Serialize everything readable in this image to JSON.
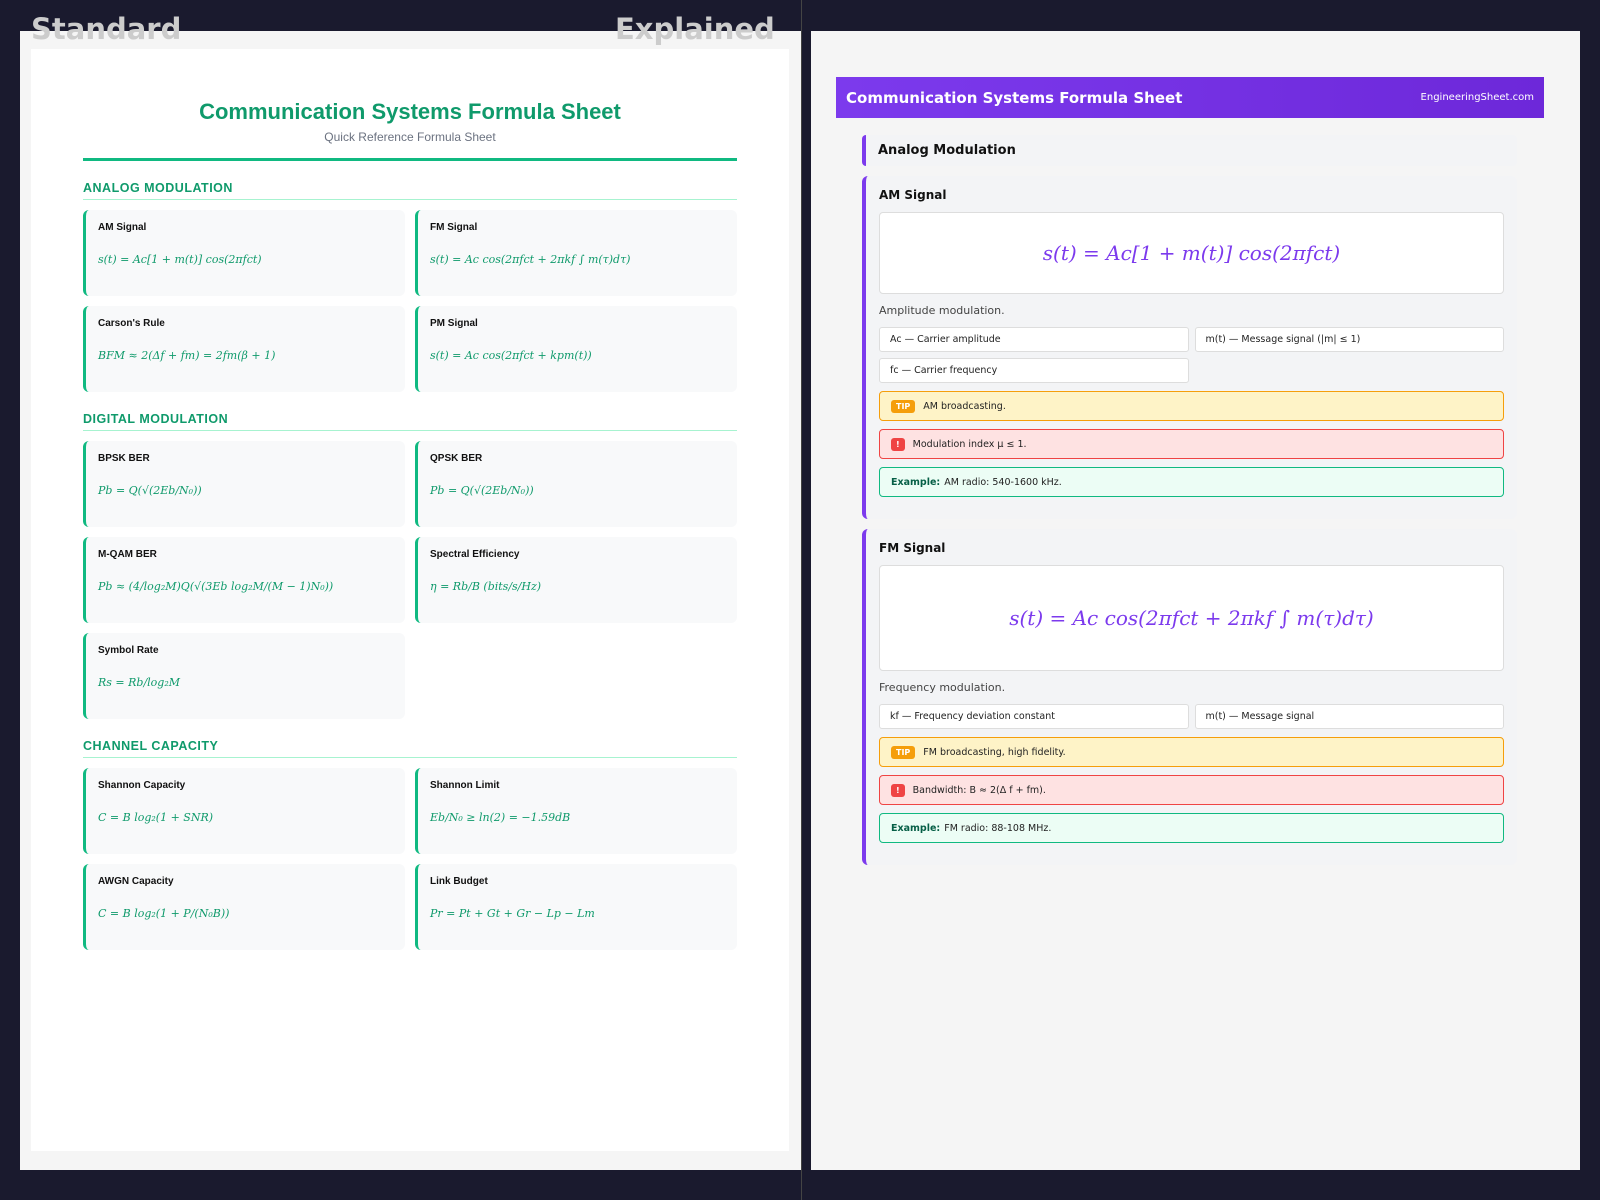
{
  "labels": {
    "standard": "Standard",
    "explained": "Explained"
  },
  "standard": {
    "title": "Communication Systems Formula Sheet",
    "subtitle": "Quick Reference Formula Sheet",
    "sections": [
      {
        "heading": "ANALOG MODULATION",
        "cards": [
          {
            "name": "AM Signal",
            "formula": "s(t) = Ac[1 + m(t)] cos(2πfct)"
          },
          {
            "name": "FM Signal",
            "formula": "s(t) = Ac cos(2πfct + 2πkf ∫ m(τ)dτ)"
          },
          {
            "name": "Carson's Rule",
            "formula": "BFM ≈ 2(Δf + fm) = 2fm(β + 1)"
          },
          {
            "name": "PM Signal",
            "formula": "s(t) = Ac cos(2πfct + kpm(t))"
          }
        ]
      },
      {
        "heading": "DIGITAL MODULATION",
        "cards": [
          {
            "name": "BPSK BER",
            "formula": "Pb = Q(√(2Eb/N₀))"
          },
          {
            "name": "QPSK BER",
            "formula": "Pb = Q(√(2Eb/N₀))"
          },
          {
            "name": "M-QAM BER",
            "formula": "Pb ≈ (4/log₂M)Q(√(3Eb log₂M/(M − 1)N₀))"
          },
          {
            "name": "Spectral Efficiency",
            "formula": "η = Rb/B (bits/s/Hz)"
          },
          {
            "name": "Symbol Rate",
            "formula": "Rs = Rb/log₂M"
          }
        ]
      },
      {
        "heading": "CHANNEL CAPACITY",
        "cards": [
          {
            "name": "Shannon Capacity",
            "formula": "C = B log₂(1 + SNR)"
          },
          {
            "name": "Shannon Limit",
            "formula": "Eb/N₀ ≥ ln(2) = −1.59dB"
          },
          {
            "name": "AWGN Capacity",
            "formula": "C = B log₂(1 + P/(N₀B))"
          },
          {
            "name": "Link Budget",
            "formula": "Pr = Pt + Gt + Gr − Lp − Lm"
          }
        ]
      }
    ]
  },
  "explained": {
    "title": "Communication Systems Formula Sheet",
    "site": "EngineeringSheet.com",
    "section": "Analog Modulation",
    "cards": [
      {
        "name": "AM Signal",
        "formula": "s(t) = Ac[1 + m(t)] cos(2πfct)",
        "description": "Amplitude modulation.",
        "vars": [
          "Ac — Carrier amplitude",
          "m(t) — Message signal (|m| ≤ 1)",
          "fc — Carrier frequency"
        ],
        "tip_badge": "TIP",
        "tip": "AM broadcasting.",
        "warning_badge": "!",
        "warning": "Modulation index μ ≤ 1.",
        "example_label": "Example:",
        "example": "AM radio: 540-1600 kHz."
      },
      {
        "name": "FM Signal",
        "formula": "s(t) = Ac cos(2πfct + 2πkf ∫ m(τ)dτ)",
        "description": "Frequency modulation.",
        "vars": [
          "kf — Frequency deviation constant",
          "m(t) — Message signal"
        ],
        "tip_badge": "TIP",
        "tip": "FM broadcasting, high fidelity.",
        "warning_badge": "!",
        "warning": "Bandwidth: B ≈ 2(Δ f + fm).",
        "example_label": "Example:",
        "example": "FM radio: 88-108 MHz."
      }
    ]
  }
}
